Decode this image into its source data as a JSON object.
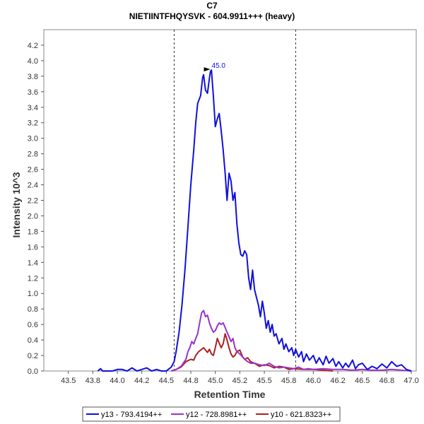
{
  "chart_data": {
    "type": "line",
    "title": "C7",
    "subtitle": "NIETIINTFHQYSVK - 604.9911+++ (heavy)",
    "xlabel": "Retention Time",
    "ylabel": "Intensity 10^3",
    "xlim": [
      43.25,
      47.05
    ],
    "ylim": [
      0,
      4.4
    ],
    "xticks": [
      "43.5",
      "43.8",
      "44.0",
      "44.2",
      "44.5",
      "44.8",
      "45.0",
      "45.2",
      "45.5",
      "45.8",
      "46.0",
      "46.2",
      "46.5",
      "46.8",
      "47.0"
    ],
    "xtick_values": [
      43.5,
      43.75,
      44.0,
      44.25,
      44.5,
      44.75,
      45.0,
      45.25,
      45.5,
      45.75,
      46.0,
      46.25,
      46.5,
      46.75,
      47.0
    ],
    "yticks": [
      "0.0",
      "0.2",
      "0.4",
      "0.6",
      "0.8",
      "1.0",
      "1.2",
      "1.4",
      "1.6",
      "1.8",
      "2.0",
      "2.2",
      "2.4",
      "2.6",
      "2.8",
      "3.0",
      "3.2",
      "3.4",
      "3.6",
      "3.8",
      "4.0",
      "4.2"
    ],
    "ytick_values": [
      0,
      0.2,
      0.4,
      0.6,
      0.8,
      1.0,
      1.2,
      1.4,
      1.6,
      1.8,
      2.0,
      2.2,
      2.4,
      2.6,
      2.8,
      3.0,
      3.2,
      3.4,
      3.6,
      3.8,
      4.0,
      4.2
    ],
    "integration_bounds": [
      44.58,
      45.82
    ],
    "peak_annotation": {
      "label": "45.0",
      "x": 44.97,
      "y": 3.88
    },
    "series": [
      {
        "name": "y13 - 793.4194++",
        "color": "#1010dd",
        "x": [
          43.8,
          43.83,
          43.85,
          43.9,
          43.95,
          44.0,
          44.05,
          44.1,
          44.15,
          44.2,
          44.25,
          44.3,
          44.35,
          44.4,
          44.45,
          44.5,
          44.52,
          44.55,
          44.58,
          44.6,
          44.63,
          44.66,
          44.69,
          44.72,
          44.75,
          44.78,
          44.8,
          44.82,
          44.85,
          44.87,
          44.88,
          44.9,
          44.92,
          44.94,
          44.95,
          44.96,
          44.98,
          45.0,
          45.02,
          45.04,
          45.06,
          45.08,
          45.1,
          45.12,
          45.14,
          45.16,
          45.18,
          45.2,
          45.22,
          45.24,
          45.26,
          45.28,
          45.3,
          45.32,
          45.34,
          45.36,
          45.38,
          45.4,
          45.42,
          45.44,
          45.46,
          45.48,
          45.5,
          45.52,
          45.54,
          45.56,
          45.58,
          45.6,
          45.62,
          45.65,
          45.68,
          45.7,
          45.72,
          45.75,
          45.78,
          45.8,
          45.82,
          45.85,
          45.88,
          45.9,
          45.93,
          45.96,
          46.0,
          46.03,
          46.06,
          46.1,
          46.13,
          46.16,
          46.2,
          46.23,
          46.26,
          46.3,
          46.33,
          46.36,
          46.4,
          46.43,
          46.46,
          46.5,
          46.55,
          46.6,
          46.65,
          46.7,
          46.75,
          46.8,
          46.85,
          46.9,
          46.95,
          47.0
        ],
        "values": [
          0.0,
          0.03,
          0.0,
          0.0,
          0.0,
          0.02,
          0.02,
          0.0,
          0.04,
          0.0,
          0.02,
          0.04,
          0.0,
          0.02,
          0.0,
          0.0,
          0.02,
          0.05,
          0.12,
          0.25,
          0.5,
          0.85,
          1.3,
          1.85,
          2.4,
          2.85,
          3.2,
          3.45,
          3.55,
          3.78,
          3.82,
          3.62,
          3.58,
          3.78,
          3.86,
          3.88,
          3.55,
          3.15,
          3.25,
          3.32,
          3.1,
          2.85,
          2.55,
          2.2,
          2.55,
          2.45,
          2.2,
          2.3,
          1.9,
          1.65,
          1.5,
          1.48,
          1.55,
          1.5,
          1.2,
          1.05,
          1.3,
          1.05,
          0.95,
          0.85,
          0.7,
          0.9,
          0.75,
          0.55,
          0.65,
          0.5,
          0.6,
          0.45,
          0.48,
          0.35,
          0.42,
          0.28,
          0.35,
          0.25,
          0.3,
          0.2,
          0.28,
          0.18,
          0.25,
          0.12,
          0.22,
          0.14,
          0.2,
          0.1,
          0.17,
          0.08,
          0.19,
          0.1,
          0.16,
          0.06,
          0.12,
          0.04,
          0.1,
          0.05,
          0.14,
          0.03,
          0.08,
          0.1,
          0.02,
          0.06,
          0.03,
          0.09,
          0.04,
          0.12,
          0.06,
          0.08,
          0.02,
          0.0
        ]
      },
      {
        "name": "y12 - 728.8981++",
        "color": "#9933cc",
        "x": [
          44.55,
          44.6,
          44.65,
          44.7,
          44.72,
          44.74,
          44.76,
          44.78,
          44.8,
          44.82,
          44.84,
          44.86,
          44.88,
          44.9,
          44.92,
          44.94,
          44.96,
          44.98,
          45.0,
          45.02,
          45.04,
          45.06,
          45.08,
          45.1,
          45.12,
          45.14,
          45.16,
          45.18,
          45.2,
          45.22,
          45.25,
          45.28,
          45.3,
          45.33,
          45.36,
          45.4,
          45.45,
          45.5,
          45.55,
          45.6,
          45.65,
          45.7,
          45.75,
          45.8,
          45.85,
          45.9,
          45.95,
          46.0,
          46.1,
          46.2,
          46.3,
          46.4,
          46.5,
          46.6,
          46.7,
          46.8,
          46.9,
          47.0
        ],
        "values": [
          0.0,
          0.02,
          0.06,
          0.15,
          0.25,
          0.3,
          0.38,
          0.35,
          0.42,
          0.48,
          0.62,
          0.75,
          0.78,
          0.7,
          0.72,
          0.62,
          0.55,
          0.5,
          0.52,
          0.58,
          0.62,
          0.6,
          0.62,
          0.56,
          0.5,
          0.44,
          0.38,
          0.42,
          0.3,
          0.25,
          0.22,
          0.18,
          0.15,
          0.12,
          0.1,
          0.1,
          0.08,
          0.07,
          0.1,
          0.06,
          0.04,
          0.05,
          0.04,
          0.03,
          0.05,
          0.02,
          0.03,
          0.02,
          0.03,
          0.02,
          0.02,
          0.01,
          0.02,
          0.01,
          0.01,
          0.02,
          0.01,
          0.0
        ]
      },
      {
        "name": "y10 - 621.8323++",
        "color": "#aa2222",
        "x": [
          44.55,
          44.6,
          44.65,
          44.7,
          44.75,
          44.78,
          44.8,
          44.83,
          44.86,
          44.88,
          44.9,
          44.92,
          44.94,
          44.96,
          44.98,
          45.0,
          45.02,
          45.04,
          45.06,
          45.08,
          45.1,
          45.12,
          45.14,
          45.16,
          45.18,
          45.2,
          45.22,
          45.25,
          45.28,
          45.3,
          45.33,
          45.36,
          45.4,
          45.45,
          45.5,
          45.55,
          45.6,
          45.65,
          45.7,
          45.75,
          45.8,
          45.9,
          46.0,
          46.1,
          46.2
        ],
        "values": [
          0.0,
          0.02,
          0.05,
          0.12,
          0.15,
          0.14,
          0.2,
          0.25,
          0.28,
          0.3,
          0.27,
          0.24,
          0.28,
          0.22,
          0.2,
          0.3,
          0.42,
          0.36,
          0.3,
          0.35,
          0.48,
          0.4,
          0.3,
          0.22,
          0.18,
          0.2,
          0.25,
          0.27,
          0.18,
          0.15,
          0.17,
          0.12,
          0.1,
          0.06,
          0.08,
          0.07,
          0.04,
          0.06,
          0.05,
          0.02,
          0.03,
          0.02,
          0.02,
          0.01,
          0.0
        ]
      }
    ]
  }
}
